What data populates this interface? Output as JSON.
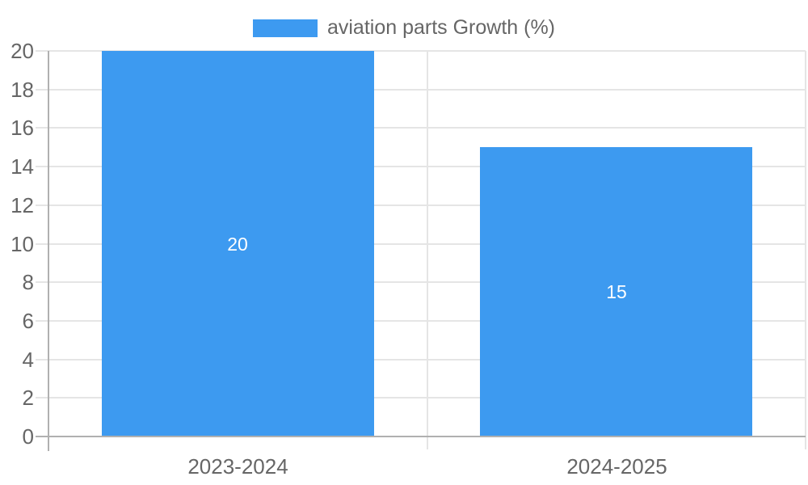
{
  "chart_data": {
    "type": "bar",
    "title": "",
    "categories": [
      "2023-2024",
      "2024-2025"
    ],
    "series": [
      {
        "name": "aviation parts Growth (%)",
        "values": [
          20,
          15
        ]
      }
    ],
    "value_labels": [
      "20",
      "15"
    ],
    "xlabel": "",
    "ylabel": "",
    "ylim": [
      0,
      20
    ],
    "ytick_step": 2,
    "yticks": [
      0,
      2,
      4,
      6,
      8,
      10,
      12,
      14,
      16,
      18,
      20
    ],
    "grid": true,
    "legend_position": "top-center",
    "bar_width_fraction": 0.72,
    "colors": {
      "bar": "#3d9af0",
      "value_label": "#ffffff",
      "axis_text": "#666666",
      "grid_line": "#e5e5e5",
      "axis_line": "#b0b0b0",
      "background": "#ffffff"
    }
  }
}
